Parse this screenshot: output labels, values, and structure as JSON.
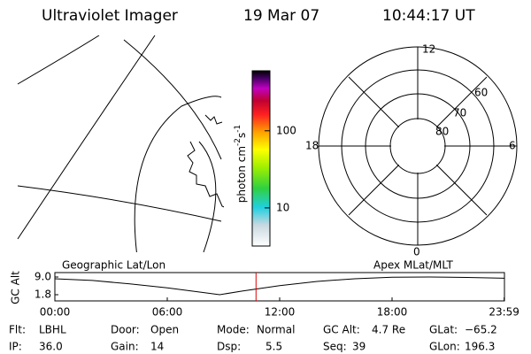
{
  "header": {
    "title": "Ultraviolet Imager",
    "date": "19 Mar 07",
    "time": "10:44:17 UT"
  },
  "colorbar": {
    "label": "photon cm",
    "exp1": "-2",
    "unit2": "s",
    "exp2": "-1",
    "log": true,
    "ylim": [
      3.2,
      600
    ],
    "yticks": [
      10,
      100
    ]
  },
  "polar": {
    "mlt_labels": [
      "12",
      "18",
      "6",
      "0"
    ],
    "lat_labels": [
      "60",
      "70",
      "80"
    ]
  },
  "map_labels": {
    "left": "Geographic Lat/Lon",
    "right": "Apex MLat/MLT"
  },
  "altitude": {
    "ylabel": "GC Alt",
    "yticks": [
      {
        "value": 9,
        "label": "9.0"
      },
      {
        "value": 1.8,
        "label": "1.8"
      }
    ],
    "ylim": [
      1.8,
      9
    ],
    "xlim": [
      0,
      24
    ],
    "xticks": [
      {
        "value": 0,
        "label": "00:00"
      },
      {
        "value": 6,
        "label": "06:00"
      },
      {
        "value": 12,
        "label": "12:00"
      },
      {
        "value": 18,
        "label": "18:00"
      },
      {
        "value": 23.983,
        "label": "23:59"
      }
    ],
    "x": [
      0,
      2,
      4,
      6,
      8,
      8.8,
      10,
      12,
      14,
      16,
      18,
      20,
      22,
      24
    ],
    "values": [
      8.3,
      7.6,
      6.2,
      4.6,
      2.6,
      1.8,
      3.3,
      5.5,
      7.2,
      8.3,
      8.9,
      9.0,
      8.8,
      8.5
    ],
    "marker_x": 10.738,
    "marker_color": "#e00000"
  },
  "footer": {
    "rows": [
      [
        {
          "label": "Flt:",
          "value": "LBHL"
        },
        {
          "label": "Door:",
          "value": "Open"
        },
        {
          "label": "Mode:",
          "value": "Normal"
        },
        {
          "label": "GC Alt:",
          "value": "4.7 Re"
        },
        {
          "label": "GLat:",
          "value": "−65.2"
        }
      ],
      [
        {
          "label": "IP:",
          "value": "36.0"
        },
        {
          "label": "Gain:",
          "value": "14"
        },
        {
          "label": "Dsp:",
          "value": "5.5"
        },
        {
          "label": "Seq:",
          "value": "39"
        },
        {
          "label": "GLon:",
          "value": "196.3"
        }
      ]
    ]
  }
}
